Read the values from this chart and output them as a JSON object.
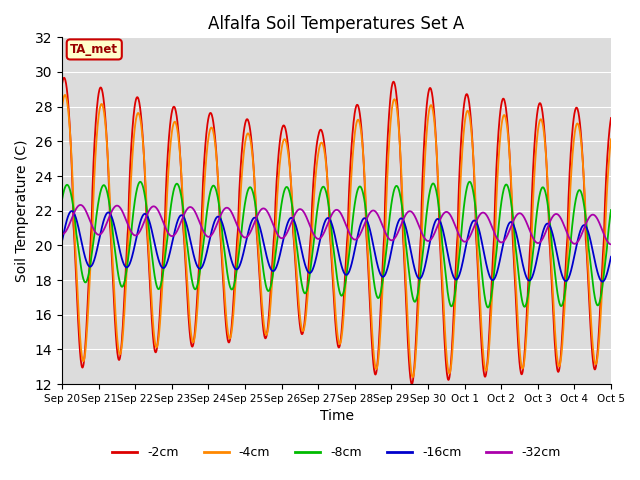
{
  "title": "Alfalfa Soil Temperatures Set A",
  "xlabel": "Time",
  "ylabel": "Soil Temperature (C)",
  "ylim": [
    12,
    32
  ],
  "yticks": [
    12,
    14,
    16,
    18,
    20,
    22,
    24,
    26,
    28,
    30,
    32
  ],
  "bg_color": "#dcdcdc",
  "fig_color": "#ffffff",
  "annotation_text": "TA_met",
  "annotation_box_color": "#ffffcc",
  "annotation_border_color": "#cc0000",
  "series": [
    {
      "label": "-2cm",
      "color": "#dd0000",
      "lw": 1.3
    },
    {
      "label": "-4cm",
      "color": "#ff8800",
      "lw": 1.3
    },
    {
      "label": "-8cm",
      "color": "#00bb00",
      "lw": 1.3
    },
    {
      "label": "-16cm",
      "color": "#0000cc",
      "lw": 1.3
    },
    {
      "label": "-32cm",
      "color": "#aa00aa",
      "lw": 1.3
    }
  ]
}
